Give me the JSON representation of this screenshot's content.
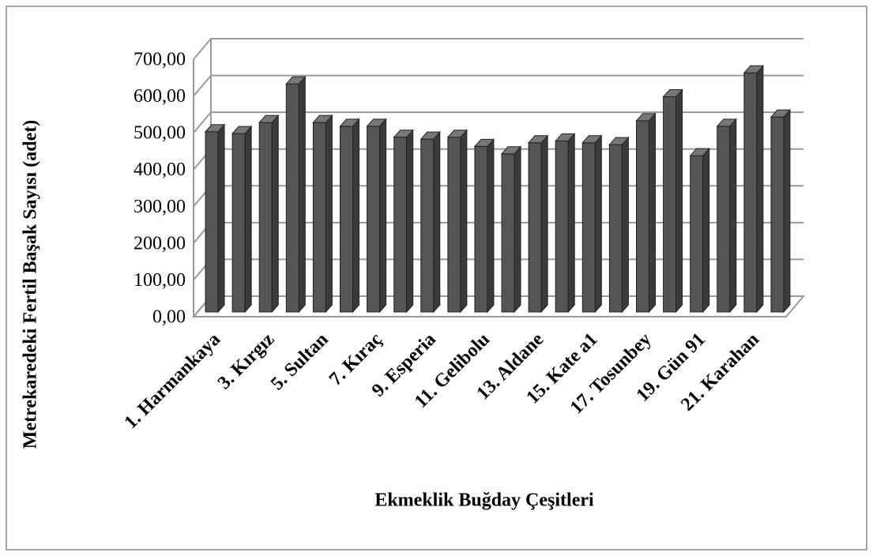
{
  "chart_data": {
    "type": "bar3d",
    "x_label": "Ekmeklik Buğday Çeşitleri",
    "y_label": "Metrekaredeki Fertil Başak Sayısı (adet)",
    "categories": [
      "1. Harmankaya",
      null,
      "3. Kırgız",
      null,
      "5. Sultan",
      null,
      "7. Kıraç",
      null,
      "9. Esperia",
      null,
      "11. Gelibolu",
      null,
      "13. Aldane",
      null,
      "15. Kate a1",
      null,
      "17. Tosunbey",
      null,
      "19. Gün 91",
      null,
      "21. Karahan",
      null
    ],
    "values": [
      490,
      485,
      515,
      620,
      515,
      505,
      505,
      475,
      470,
      475,
      450,
      430,
      460,
      465,
      460,
      455,
      520,
      585,
      425,
      505,
      650,
      530
    ],
    "color": "#555555",
    "ylim": [
      0,
      700
    ],
    "yticks": [
      {
        "value": 0,
        "label": "0,00"
      },
      {
        "value": 100,
        "label": "100,00"
      },
      {
        "value": 200,
        "label": "200,00"
      },
      {
        "value": 300,
        "label": "300,00"
      },
      {
        "value": 400,
        "label": "400,00"
      },
      {
        "value": 500,
        "label": "500,00"
      },
      {
        "value": 600,
        "label": "600,00"
      },
      {
        "value": 700,
        "label": "700,00"
      }
    ],
    "grid": true
  }
}
